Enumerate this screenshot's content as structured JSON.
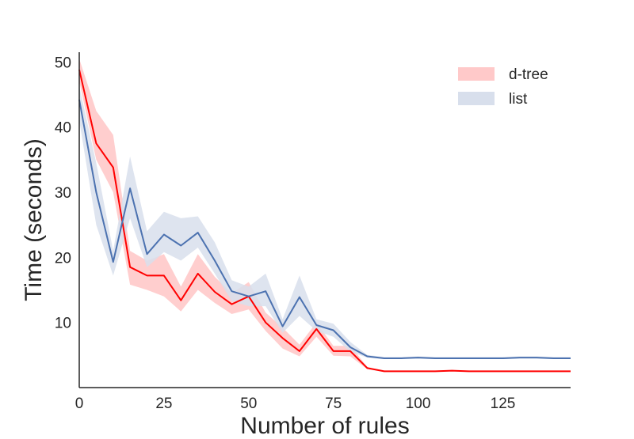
{
  "chart_data": {
    "type": "line",
    "title": "",
    "xlabel": "Number of rules",
    "ylabel": "Time (seconds)",
    "xlim": [
      0,
      145
    ],
    "ylim": [
      0,
      51.5
    ],
    "xticks": [
      0,
      25,
      50,
      75,
      100,
      125
    ],
    "yticks": [
      10,
      20,
      30,
      40,
      50
    ],
    "grid": false,
    "legend_position": "top-right",
    "x": [
      0,
      5,
      10,
      15,
      20,
      25,
      30,
      35,
      40,
      45,
      50,
      55,
      60,
      65,
      70,
      75,
      80,
      85,
      90,
      95,
      100,
      105,
      110,
      115,
      120,
      125,
      130,
      135,
      140,
      145
    ],
    "series": [
      {
        "name": "d-tree",
        "line_color": "#ff0000",
        "band_color": "#ffc9c9",
        "values": [
          48.8,
          37.5,
          33.8,
          18.5,
          17.2,
          17.2,
          13.4,
          17.5,
          14.7,
          12.8,
          14.0,
          10.0,
          7.6,
          5.6,
          9.0,
          5.6,
          5.6,
          3.0,
          2.5,
          2.5,
          2.5,
          2.5,
          2.6,
          2.5,
          2.5,
          2.5,
          2.5,
          2.5,
          2.5,
          2.5
        ],
        "lower": [
          47.0,
          35.0,
          30.0,
          15.8,
          15.0,
          14.0,
          11.7,
          15.0,
          13.0,
          11.3,
          12.0,
          8.7,
          6.0,
          4.8,
          7.8,
          4.9,
          4.8,
          2.8,
          2.4,
          2.4,
          2.4,
          2.4,
          2.5,
          2.4,
          2.4,
          2.4,
          2.4,
          2.4,
          2.4,
          2.4
        ],
        "upper": [
          50.5,
          42.5,
          38.8,
          21.0,
          19.5,
          20.5,
          15.5,
          20.5,
          17.0,
          14.5,
          16.2,
          11.5,
          9.2,
          6.6,
          10.0,
          6.4,
          6.4,
          3.2,
          2.6,
          2.6,
          2.6,
          2.6,
          2.7,
          2.6,
          2.6,
          2.6,
          2.6,
          2.6,
          2.6,
          2.6
        ]
      },
      {
        "name": "list",
        "line_color": "#4c72b0",
        "band_color": "#d8dfec",
        "values": [
          44.2,
          30.0,
          19.3,
          30.6,
          20.5,
          23.5,
          21.8,
          23.8,
          19.5,
          14.8,
          14.0,
          14.8,
          9.4,
          13.9,
          9.6,
          8.8,
          6.2,
          4.8,
          4.5,
          4.5,
          4.6,
          4.5,
          4.5,
          4.5,
          4.5,
          4.5,
          4.6,
          4.6,
          4.5,
          4.5
        ],
        "lower": [
          41.0,
          25.0,
          17.2,
          26.0,
          18.5,
          20.8,
          19.5,
          21.5,
          17.5,
          13.3,
          12.5,
          12.5,
          8.4,
          11.0,
          8.7,
          7.8,
          5.5,
          4.6,
          4.4,
          4.4,
          4.5,
          4.4,
          4.4,
          4.4,
          4.4,
          4.4,
          4.5,
          4.5,
          4.4,
          4.4
        ],
        "upper": [
          46.3,
          34.5,
          21.0,
          35.5,
          24.0,
          27.0,
          26.0,
          26.3,
          22.3,
          16.5,
          15.5,
          17.5,
          10.5,
          17.2,
          10.5,
          9.8,
          7.0,
          5.0,
          4.7,
          4.7,
          4.8,
          4.7,
          4.7,
          4.7,
          4.7,
          4.7,
          4.8,
          4.8,
          4.7,
          4.7
        ]
      }
    ]
  }
}
